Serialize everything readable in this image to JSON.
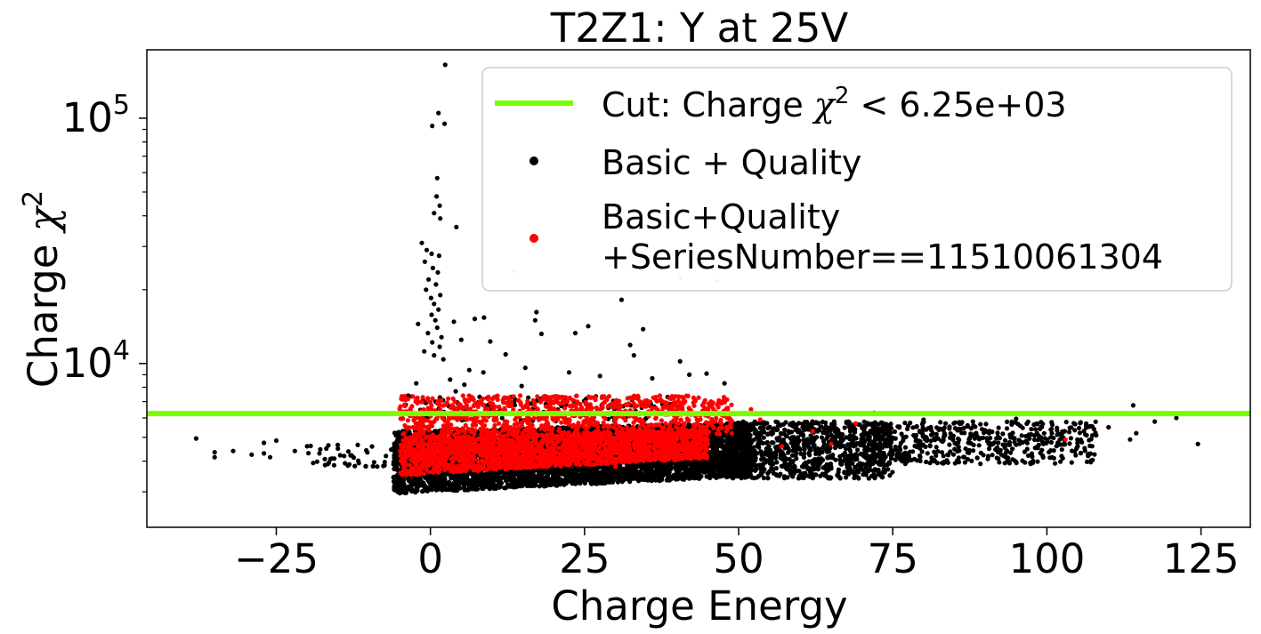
{
  "chart_data": {
    "type": "scatter",
    "title": "T2Z1: Y at 25V",
    "xlabel": "Charge Energy",
    "ylabel_main": "Charge ",
    "ylabel_symbol": "χ",
    "ylabel_sup": "2",
    "xlim": [
      -46,
      133
    ],
    "ylim": [
      2150,
      190000
    ],
    "yscale": "log",
    "x_ticks": [
      {
        "value": -25,
        "label": "−25"
      },
      {
        "value": 0,
        "label": "0"
      },
      {
        "value": 25,
        "label": "25"
      },
      {
        "value": 50,
        "label": "50"
      },
      {
        "value": 75,
        "label": "75"
      },
      {
        "value": 100,
        "label": "100"
      },
      {
        "value": 125,
        "label": "125"
      }
    ],
    "y_ticks": [
      {
        "value": 10000,
        "base": "10",
        "exp": "4"
      },
      {
        "value": 100000,
        "base": "10",
        "exp": "5"
      }
    ],
    "cut": {
      "y": 6250,
      "color": "#7cfc00",
      "label_prefix": "Cut: Charge ",
      "label_symbol": "χ",
      "label_sup": "2",
      "label_suffix": " < 6.25e+03"
    },
    "legend": {
      "placement": "upper right",
      "entries": [
        {
          "key": "cut",
          "kind": "line",
          "color": "#7cfc00",
          "lines": []
        },
        {
          "key": "basic",
          "kind": "marker",
          "color": "#000000",
          "lines": [
            "Basic + Quality"
          ]
        },
        {
          "key": "series",
          "kind": "marker",
          "color": "#ff0000",
          "lines": [
            "Basic+Quality",
            "+SeriesNumber==11510061304"
          ]
        }
      ]
    },
    "series": [
      {
        "key": "basic",
        "name": "Basic + Quality",
        "color": "#000000",
        "density": [
          {
            "x": [
              -6,
              52
            ],
            "y": [
              2950,
              5300
            ],
            "n": 5200,
            "mode": "trend"
          },
          {
            "x": [
              48,
              75
            ],
            "y": [
              3400,
              5800
            ],
            "n": 900
          },
          {
            "x": [
              70,
              108
            ],
            "y": [
              3900,
              5800
            ],
            "n": 520
          },
          {
            "x": [
              -20,
              -6
            ],
            "y": [
              3800,
              4700
            ],
            "n": 40
          },
          {
            "x": [
              -5,
              40
            ],
            "y": [
              5800,
              7400
            ],
            "n": 140
          }
        ],
        "points": [
          [
            -38,
            4950
          ],
          [
            -35,
            4350
          ],
          [
            -35,
            4150
          ],
          [
            -32,
            4400
          ],
          [
            -29,
            4250
          ],
          [
            -27,
            4300
          ],
          [
            -27,
            4750
          ],
          [
            -25,
            4850
          ],
          [
            -26,
            4150
          ],
          [
            -22,
            4400
          ],
          [
            -20,
            4600
          ],
          [
            -18,
            4300
          ],
          [
            -16,
            4100
          ],
          [
            -15,
            4500
          ],
          [
            -14,
            4200
          ],
          [
            2.4,
            165000
          ],
          [
            1.3,
            105000
          ],
          [
            2.3,
            95000
          ],
          [
            0.3,
            93000
          ],
          [
            1.1,
            57000
          ],
          [
            1.0,
            48000
          ],
          [
            1.5,
            44000
          ],
          [
            0.6,
            41000
          ],
          [
            1.6,
            39000
          ],
          [
            4.2,
            36000
          ],
          [
            -1.4,
            31000
          ],
          [
            -0.6,
            29000
          ],
          [
            0.2,
            28000
          ],
          [
            1.4,
            27500
          ],
          [
            -0.9,
            26000
          ],
          [
            0.4,
            24500
          ],
          [
            1.2,
            23500
          ],
          [
            -0.3,
            22000
          ],
          [
            0.9,
            21000
          ],
          [
            -0.7,
            20000
          ],
          [
            1.6,
            19000
          ],
          [
            0.1,
            18500
          ],
          [
            0.6,
            17500
          ],
          [
            1.3,
            16600
          ],
          [
            0.2,
            15800
          ],
          [
            0.8,
            15000
          ],
          [
            -2,
            14500
          ],
          [
            1.1,
            14000
          ],
          [
            -0.4,
            13300
          ],
          [
            1.8,
            12800
          ],
          [
            0.3,
            12200
          ],
          [
            1.5,
            11700
          ],
          [
            -1.0,
            11200
          ],
          [
            0.6,
            10800
          ],
          [
            2.1,
            10400
          ],
          [
            3.8,
            14800
          ],
          [
            5,
            12500
          ],
          [
            7.2,
            15200
          ],
          [
            8.7,
            15400
          ],
          [
            9.7,
            12300
          ],
          [
            12.2,
            10900
          ],
          [
            17,
            15000
          ],
          [
            17.2,
            16200
          ],
          [
            18,
            13200
          ],
          [
            23.5,
            13300
          ],
          [
            25.6,
            14200
          ],
          [
            31,
            18200
          ],
          [
            32.4,
            11900
          ],
          [
            34.5,
            13800
          ],
          [
            33,
            10800
          ],
          [
            40.5,
            10200
          ],
          [
            42,
            9000
          ],
          [
            44.8,
            9100
          ],
          [
            47.7,
            8300
          ],
          [
            22.5,
            9200
          ],
          [
            27.5,
            8900
          ],
          [
            36,
            8700
          ],
          [
            15.4,
            9600
          ],
          [
            14.8,
            8100
          ],
          [
            6.3,
            9400
          ],
          [
            8.6,
            9200
          ],
          [
            3.2,
            8600
          ],
          [
            4.1,
            7700
          ],
          [
            -2.3,
            8300
          ],
          [
            5.5,
            8200
          ],
          [
            114,
            6750
          ],
          [
            121,
            6000
          ],
          [
            124.5,
            4700
          ],
          [
            117.5,
            5800
          ],
          [
            114.5,
            5200
          ],
          [
            113.5,
            4900
          ],
          [
            110,
            5500
          ],
          [
            108,
            5100
          ],
          [
            106,
            5300
          ],
          [
            105,
            4600
          ],
          [
            66,
            6250
          ],
          [
            72,
            6300
          ],
          [
            80,
            5900
          ],
          [
            88,
            5800
          ],
          [
            95,
            5950
          ]
        ]
      },
      {
        "key": "series",
        "name": "Basic+Quality +SeriesNumber==11510061304",
        "color": "#ff0000",
        "density": [
          {
            "x": [
              -5,
              45
            ],
            "y": [
              3500,
              5000
            ],
            "n": 2200,
            "mode": "trend"
          },
          {
            "x": [
              -5,
              49
            ],
            "y": [
              5100,
              7400
            ],
            "n": 900
          }
        ],
        "points": [
          [
            52,
            6500
          ],
          [
            53.5,
            5900
          ],
          [
            57,
            4600
          ],
          [
            62,
            5300
          ],
          [
            65,
            4700
          ],
          [
            69,
            5700
          ],
          [
            103,
            4900
          ],
          [
            30,
            3800
          ],
          [
            45,
            4700
          ],
          [
            48,
            5300
          ]
        ]
      }
    ],
    "faint_points": [
      [
        13.6,
        23800
      ],
      [
        40.6,
        22300
      ],
      [
        46.5,
        21700
      ]
    ]
  }
}
